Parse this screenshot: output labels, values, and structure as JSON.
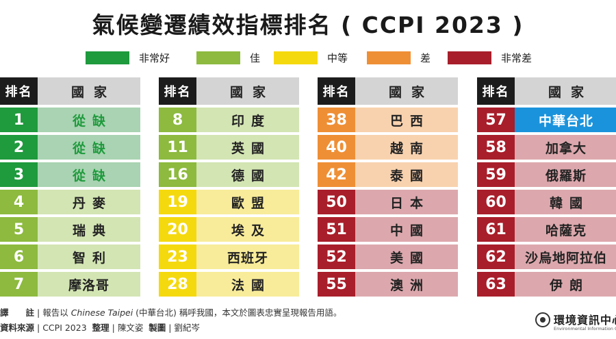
{
  "title": "氣候變遷績效指標排名 ( CCPI 2023 )",
  "legend": [
    {
      "label": "非常好",
      "color": "#1f9a3d"
    },
    {
      "label": "佳",
      "color": "#8dba3f"
    },
    {
      "label": "中等",
      "color": "#f5d90f"
    },
    {
      "label": "差",
      "color": "#ef8f35"
    },
    {
      "label": "非常差",
      "color": "#a81e2a"
    }
  ],
  "header": {
    "rank": "排名",
    "country": "國家"
  },
  "tables": [
    {
      "rows": [
        {
          "rank": "1",
          "country": "從缺",
          "rankColor": "#1f9a3d",
          "bg": "#a9d3b2",
          "style": "green"
        },
        {
          "rank": "2",
          "country": "從缺",
          "rankColor": "#1f9a3d",
          "bg": "#a9d3b2",
          "style": "green"
        },
        {
          "rank": "3",
          "country": "從缺",
          "rankColor": "#1f9a3d",
          "bg": "#a9d3b2",
          "style": "green"
        },
        {
          "rank": "4",
          "country": "丹麥",
          "rankColor": "#8dba3f",
          "bg": "#d3e5b3",
          "style": ""
        },
        {
          "rank": "5",
          "country": "瑞典",
          "rankColor": "#8dba3f",
          "bg": "#d3e5b3",
          "style": ""
        },
        {
          "rank": "6",
          "country": "智利",
          "rankColor": "#8dba3f",
          "bg": "#d3e5b3",
          "style": ""
        },
        {
          "rank": "7",
          "country": "摩洛哥",
          "rankColor": "#8dba3f",
          "bg": "#d3e5b3",
          "style": "wide"
        }
      ]
    },
    {
      "rows": [
        {
          "rank": "8",
          "country": "印度",
          "rankColor": "#8dba3f",
          "bg": "#d3e5b3",
          "style": ""
        },
        {
          "rank": "11",
          "country": "英國",
          "rankColor": "#8dba3f",
          "bg": "#d3e5b3",
          "style": ""
        },
        {
          "rank": "16",
          "country": "德國",
          "rankColor": "#8dba3f",
          "bg": "#d3e5b3",
          "style": ""
        },
        {
          "rank": "19",
          "country": "歐盟",
          "rankColor": "#f5d90f",
          "bg": "#f8ec9a",
          "style": ""
        },
        {
          "rank": "20",
          "country": "埃及",
          "rankColor": "#f5d90f",
          "bg": "#f8ec9a",
          "style": ""
        },
        {
          "rank": "23",
          "country": "西班牙",
          "rankColor": "#f5d90f",
          "bg": "#f8ec9a",
          "style": "wide"
        },
        {
          "rank": "28",
          "country": "法國",
          "rankColor": "#f5d90f",
          "bg": "#f8ec9a",
          "style": ""
        }
      ]
    },
    {
      "rows": [
        {
          "rank": "38",
          "country": "巴西",
          "rankColor": "#ef8f35",
          "bg": "#f8d2ae",
          "style": ""
        },
        {
          "rank": "40",
          "country": "越南",
          "rankColor": "#ef8f35",
          "bg": "#f8d2ae",
          "style": ""
        },
        {
          "rank": "42",
          "country": "泰國",
          "rankColor": "#ef8f35",
          "bg": "#f8d2ae",
          "style": ""
        },
        {
          "rank": "50",
          "country": "日本",
          "rankColor": "#a81e2a",
          "bg": "#dca8ad",
          "style": ""
        },
        {
          "rank": "51",
          "country": "中國",
          "rankColor": "#a81e2a",
          "bg": "#dca8ad",
          "style": ""
        },
        {
          "rank": "52",
          "country": "美國",
          "rankColor": "#a81e2a",
          "bg": "#dca8ad",
          "style": ""
        },
        {
          "rank": "55",
          "country": "澳洲",
          "rankColor": "#a81e2a",
          "bg": "#dca8ad",
          "style": ""
        }
      ]
    },
    {
      "rows": [
        {
          "rank": "57",
          "country": "中華台北",
          "rankColor": "#a81e2a",
          "bg": "#1b93dc",
          "style": "hl"
        },
        {
          "rank": "58",
          "country": "加拿大",
          "rankColor": "#a81e2a",
          "bg": "#dca8ad",
          "style": "wide"
        },
        {
          "rank": "59",
          "country": "俄羅斯",
          "rankColor": "#a81e2a",
          "bg": "#dca8ad",
          "style": "wide"
        },
        {
          "rank": "60",
          "country": "韓國",
          "rankColor": "#a81e2a",
          "bg": "#dca8ad",
          "style": ""
        },
        {
          "rank": "61",
          "country": "哈薩克",
          "rankColor": "#a81e2a",
          "bg": "#dca8ad",
          "style": "wide"
        },
        {
          "rank": "62",
          "country": "沙烏地阿拉伯",
          "rankColor": "#a81e2a",
          "bg": "#dca8ad",
          "style": "wide"
        },
        {
          "rank": "63",
          "country": "伊朗",
          "rankColor": "#a81e2a",
          "bg": "#dca8ad",
          "style": ""
        }
      ]
    }
  ],
  "footer": {
    "note_label": "譯　　註",
    "note_pre": "報告以",
    "note_italic": "Chinese Taipei",
    "note_post": "(中華台北) 稱呼我國，本文於圖表忠實呈現報告用語。",
    "source_label": "資料來源",
    "source": "CCPI 2023",
    "editor_label": "整理",
    "editor": "陳文姿",
    "designer_label": "製圖",
    "designer": "劉紀岑"
  },
  "logo": {
    "name": "環境資訊中心",
    "sub": "Environmental Information Center"
  }
}
